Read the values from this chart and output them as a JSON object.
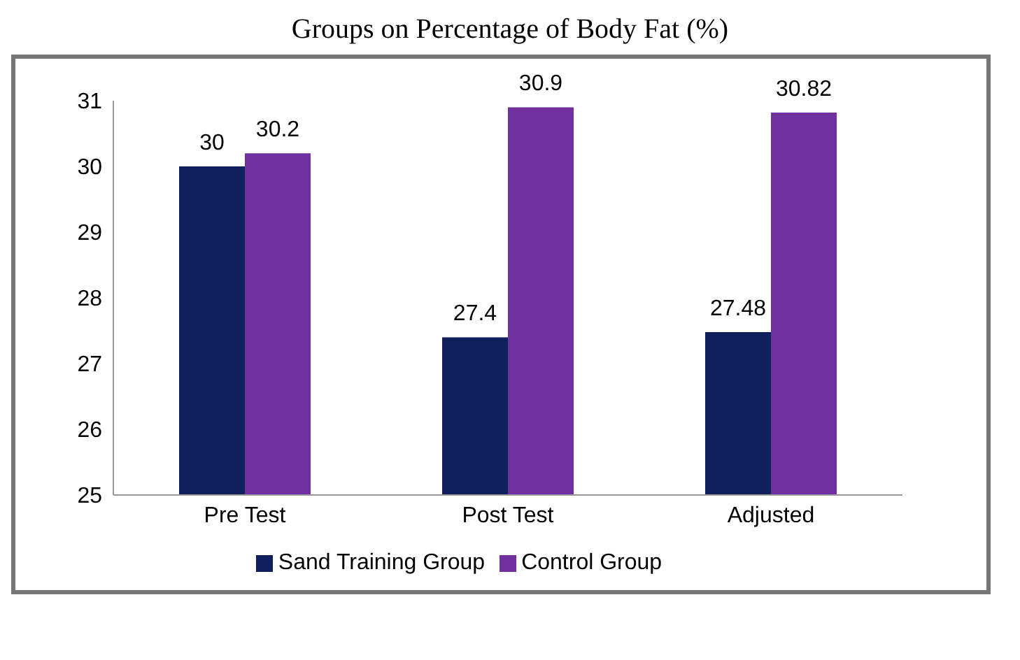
{
  "chart_data": {
    "type": "bar",
    "title": "Groups on Percentage of Body Fat (%)",
    "categories": [
      "Pre Test",
      "Post Test",
      "Adjusted"
    ],
    "series": [
      {
        "name": "Sand Training Group",
        "color": "#0f1f5c",
        "values": [
          30,
          27.4,
          27.48
        ]
      },
      {
        "name": "Control Group",
        "color": "#7030a0",
        "values": [
          30.2,
          30.9,
          30.82
        ]
      }
    ],
    "ylim": [
      25,
      31
    ],
    "yticks": [
      25,
      26,
      27,
      28,
      29,
      30,
      31
    ],
    "data_labels": true,
    "legend": "bottom",
    "grid": false
  }
}
